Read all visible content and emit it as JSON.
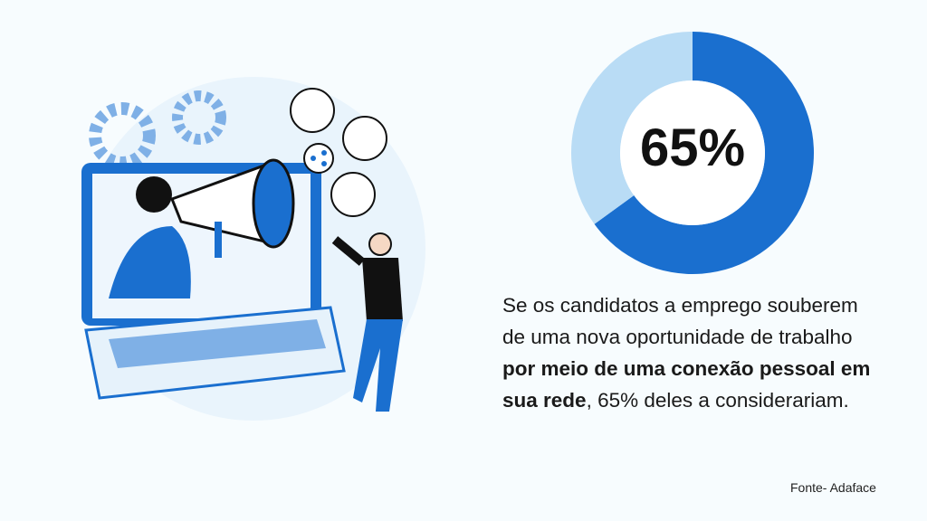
{
  "chart_data": {
    "type": "pie",
    "style": "donut",
    "values": [
      65,
      35
    ],
    "colors": [
      "#1a6fcf",
      "#b9dcf5"
    ],
    "center_label": "65%"
  },
  "text": {
    "line1": "Se os candidatos a emprego souberem",
    "line2": "de uma nova oportunidade de trabalho",
    "bold1": "por meio de uma conexão pessoal em",
    "bold2": "sua rede",
    "rest": ", 65% deles a considerariam."
  },
  "source": "Fonte- Adaface",
  "illustration": {
    "icons": [
      "gear-icon",
      "laptop-icon",
      "megaphone-icon",
      "share-icon",
      "avatar-icon"
    ]
  }
}
